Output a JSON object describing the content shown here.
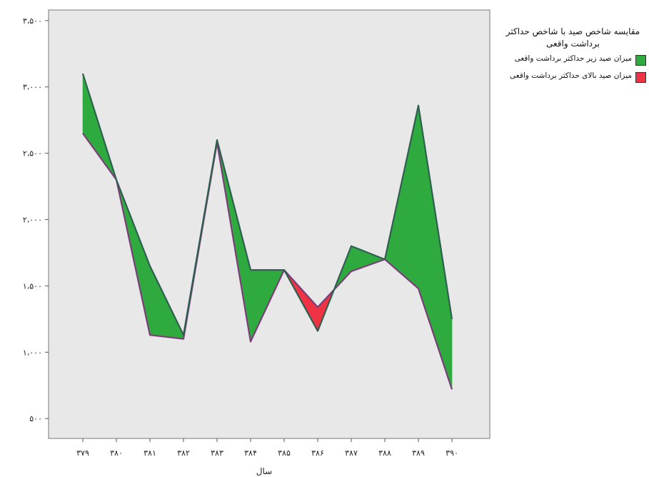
{
  "chart_data": {
    "type": "area",
    "xlabel": "سال",
    "ylabel": "",
    "categories": [
      "۳۷۹",
      "۳۸۰",
      "۳۸۱",
      "۳۸۲",
      "۳۸۳",
      "۳۸۴",
      "۳۸۵",
      "۳۸۶",
      "۳۸۷",
      "۳۸۸",
      "۳۸۹",
      "۳۹۰"
    ],
    "ytick_labels": [
      "۵۰۰",
      "۱،۰۰۰",
      "۱،۵۰۰",
      "۲،۰۰۰",
      "۲،۵۰۰",
      "۳،۰۰۰",
      "۳،۵۰۰"
    ],
    "yticks": [
      500,
      1000,
      1500,
      2000,
      2500,
      3000,
      3500
    ],
    "ylim": [
      350,
      3580
    ],
    "grid": false,
    "legend_position": "right",
    "legend_title": "مقایسه شاخص صید با شاخص حداکثر برداشت واقعی",
    "series": [
      {
        "name": "میزان صید",
        "values": [
          3100,
          2300,
          1650,
          1130,
          2600,
          1620,
          1620,
          1160,
          1800,
          1700,
          2860,
          1250
        ]
      },
      {
        "name": "حداکثر برداشت",
        "values": [
          2650,
          2300,
          1130,
          1100,
          2580,
          1080,
          1620,
          1340,
          1610,
          1700,
          1480,
          720
        ]
      }
    ],
    "fill_series": [
      {
        "name": "میزان صید زیر حداکثر برداشت واقعی",
        "color": "#2eaa3e"
      },
      {
        "name": "میزان صید بالای حداکثر برداشت واقعی",
        "color": "#ee3344"
      }
    ]
  }
}
